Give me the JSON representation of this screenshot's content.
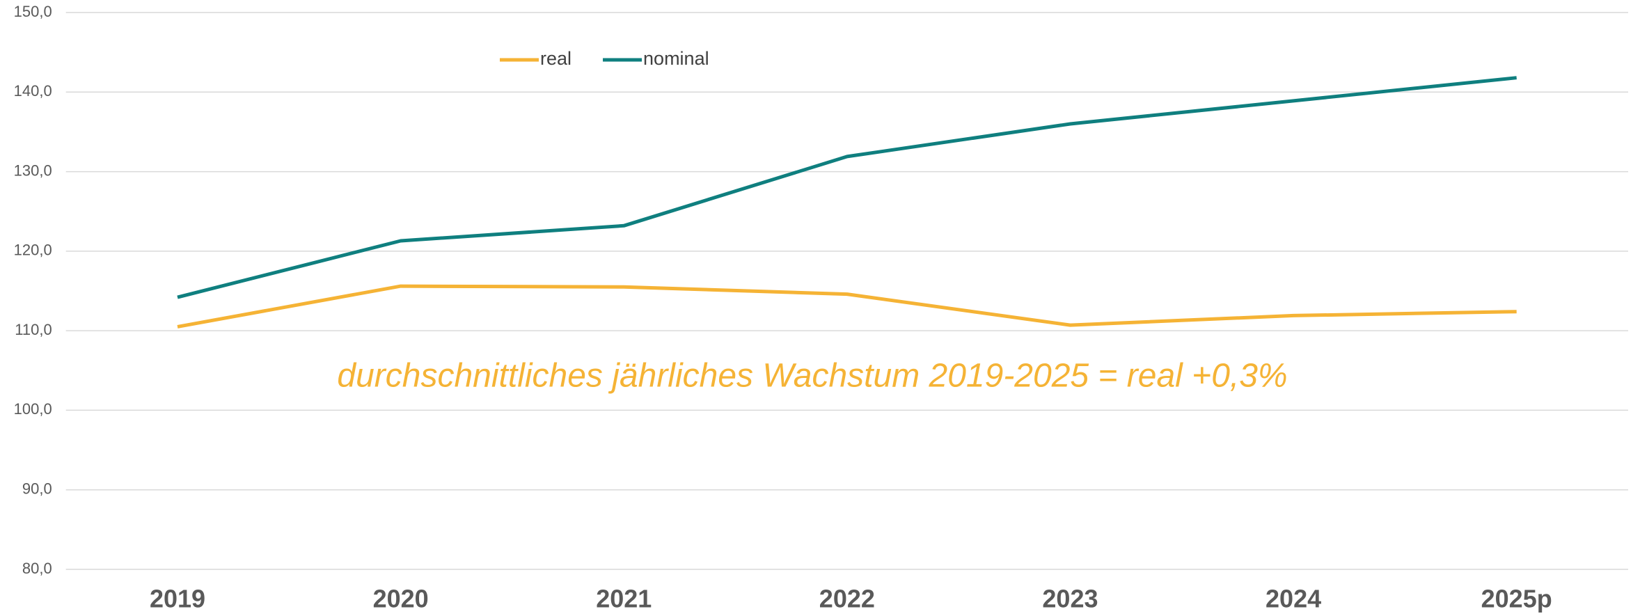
{
  "chart_data": {
    "type": "line",
    "categories": [
      "2019",
      "2020",
      "2021",
      "2022",
      "2023",
      "2024",
      "2025p"
    ],
    "series": [
      {
        "name": "real",
        "color": "#f5b335",
        "values": [
          110.5,
          115.6,
          115.5,
          114.6,
          110.7,
          111.9,
          112.4
        ]
      },
      {
        "name": "nominal",
        "color": "#0f7f7f",
        "values": [
          114.2,
          121.3,
          123.2,
          131.9,
          136.0,
          138.9,
          141.8
        ]
      }
    ],
    "ylim": [
      80,
      150
    ],
    "yticks": [
      {
        "value": 80,
        "label": "80,0"
      },
      {
        "value": 90,
        "label": "90,0"
      },
      {
        "value": 100,
        "label": "100,0"
      },
      {
        "value": 110,
        "label": "110,0"
      },
      {
        "value": 120,
        "label": "120,0"
      },
      {
        "value": 130,
        "label": "130,0"
      },
      {
        "value": 140,
        "label": "140,0"
      },
      {
        "value": 150,
        "label": "150,0"
      }
    ],
    "grid": true,
    "legend": "top",
    "annotation": "durchschnittliches jährliches Wachstum 2019-2025 = real +0,3%"
  }
}
